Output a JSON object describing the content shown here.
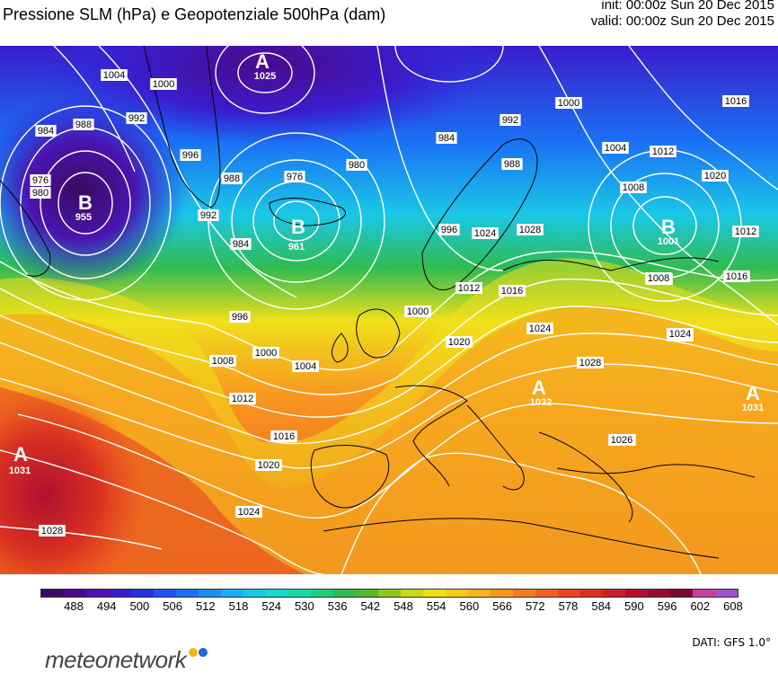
{
  "header": {
    "title": "Pressione SLM (hPa) e Geopotenziale 500hPa (dam)",
    "init": "init: 00:00z Sun 20 Dec 2015",
    "valid": "valid: 00:00z Sun 20 Dec 2015"
  },
  "colors": {
    "isobar": "#ffffff",
    "coastline": "#000000",
    "label_bg": "#ffffff"
  },
  "map": {
    "centers": [
      {
        "letter": "A",
        "value": "1025"
      },
      {
        "letter": "B",
        "value": "955"
      },
      {
        "letter": "B",
        "value": "961"
      },
      {
        "letter": "B",
        "value": "1001"
      },
      {
        "letter": "A",
        "value": "1031"
      },
      {
        "letter": "A",
        "value": "1032"
      },
      {
        "letter": "A",
        "value": "1031"
      }
    ],
    "isobar_labels": [
      "1004",
      "1000",
      "988",
      "992",
      "984",
      "996",
      "976",
      "980",
      "988",
      "992",
      "984",
      "996",
      "1000",
      "1004",
      "1008",
      "1012",
      "1016",
      "1020",
      "1024",
      "1028",
      "984",
      "980",
      "976",
      "988",
      "992",
      "996",
      "1000",
      "1004",
      "1008",
      "1012",
      "1016",
      "1020",
      "1024",
      "1028",
      "1012",
      "1016",
      "1020",
      "1024",
      "1016",
      "1000",
      "1004",
      "1008",
      "1016",
      "1020",
      "1024",
      "1026",
      "1028",
      "1012",
      "1016"
    ]
  },
  "colorbar": {
    "labels": [
      "488",
      "494",
      "500",
      "506",
      "512",
      "518",
      "524",
      "530",
      "536",
      "542",
      "548",
      "554",
      "560",
      "566",
      "572",
      "578",
      "584",
      "590",
      "596",
      "602",
      "608"
    ],
    "colors": [
      "#3a0a5e",
      "#4b0a8a",
      "#4a14b0",
      "#3a1ccc",
      "#2a30e0",
      "#1f50f0",
      "#1a70f5",
      "#1a90f5",
      "#18aef0",
      "#1ac8e6",
      "#1ad8cc",
      "#1ad8a8",
      "#22cc80",
      "#30bb50",
      "#52b830",
      "#8cc820",
      "#c8d81a",
      "#f0e01a",
      "#f8c81a",
      "#f8b020",
      "#f89820",
      "#f47c20",
      "#f06020",
      "#e84420",
      "#d83020",
      "#c82028",
      "#b01030",
      "#980a30",
      "#7a0a2a",
      "#c83ca0",
      "#a050d0"
    ]
  },
  "logo": {
    "text": "meteonetwork"
  },
  "source": {
    "text": "DATI: GFS 1.0°"
  }
}
